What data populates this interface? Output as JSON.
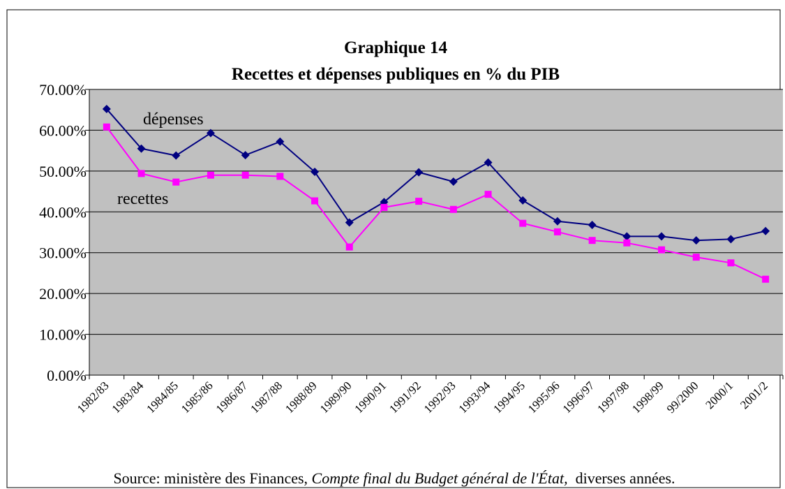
{
  "chart_data": {
    "type": "line",
    "title": [
      "Graphique 14",
      "Recettes et dépenses publiques en % du PIB"
    ],
    "categories": [
      "1982/83",
      "1983/84",
      "1984/85",
      "1985/86",
      "1986/87",
      "1987/88",
      "1988/89",
      "1989/90",
      "1990/91",
      "1991/92",
      "1992/93",
      "1993/94",
      "1994/95",
      "1995/96",
      "1996/97",
      "1997/98",
      "1998/99",
      "99/2000",
      "2000/1",
      "2001/2"
    ],
    "series": [
      {
        "name": "dépenses",
        "color": "#000080",
        "marker": "diamond",
        "values": [
          65.2,
          55.5,
          53.8,
          59.3,
          53.9,
          57.2,
          49.8,
          37.4,
          42.4,
          49.7,
          47.4,
          52.1,
          42.8,
          37.7,
          36.8,
          34.0,
          34.0,
          33.0,
          33.3,
          35.3
        ]
      },
      {
        "name": "recettes",
        "color": "#ff00ff",
        "marker": "square",
        "values": [
          60.8,
          49.4,
          47.3,
          49.0,
          49.0,
          48.7,
          42.7,
          31.4,
          41.1,
          42.6,
          40.6,
          44.3,
          37.2,
          35.1,
          33.0,
          32.4,
          30.7,
          28.9,
          27.5,
          23.5
        ]
      }
    ],
    "ylim": [
      0,
      70
    ],
    "yticks": [
      {
        "value": 0,
        "label": "0.00%"
      },
      {
        "value": 10,
        "label": "10.00%"
      },
      {
        "value": 20,
        "label": "20.00%"
      },
      {
        "value": 30,
        "label": "30.00%"
      },
      {
        "value": 40,
        "label": "40.00%"
      },
      {
        "value": 50,
        "label": "50.00%"
      },
      {
        "value": 60,
        "label": "60.00%"
      },
      {
        "value": 70,
        "label": "70.00%"
      }
    ],
    "grid": true,
    "source": [
      "Source: ministère des Finances, ",
      "Compte final du Budget général de l'État,",
      "  diverses années."
    ]
  }
}
